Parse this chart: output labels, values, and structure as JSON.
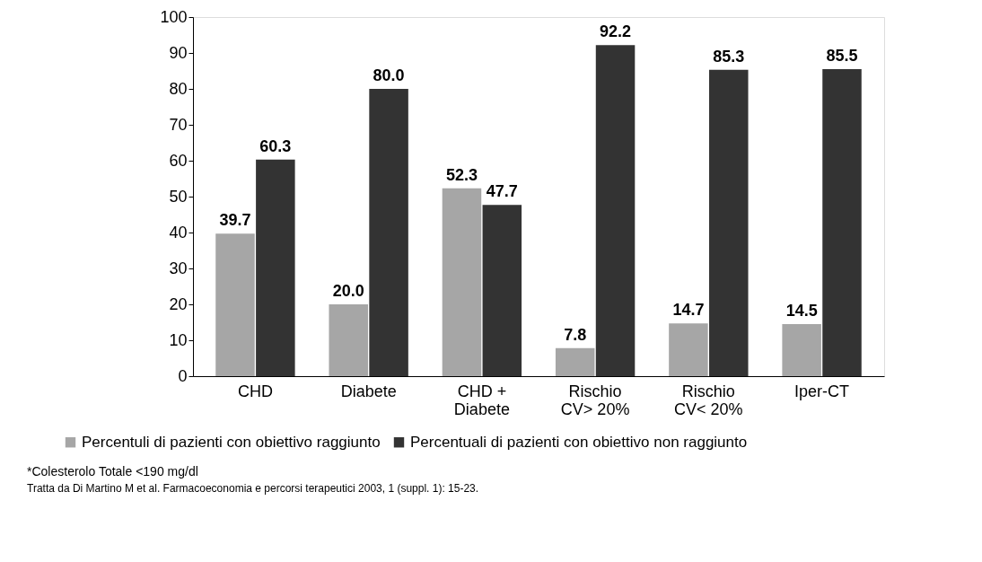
{
  "chart_data": {
    "type": "bar",
    "categories": [
      "CHD",
      "Diabete",
      "CHD +\nDiabete",
      "Rischio\nCV> 20%",
      "Rischio\nCV< 20%",
      "Iper-CT"
    ],
    "series": [
      {
        "name": "Percentuli di pazienti con obiettivo raggiunto",
        "color": "#a6a6a6",
        "values": [
          39.7,
          20.0,
          52.3,
          7.8,
          14.7,
          14.5
        ],
        "value_labels": [
          "39.7",
          "20.0",
          "52.3",
          "7.8",
          "14.7",
          "14.5"
        ]
      },
      {
        "name": "Percentuali di pazienti con obiettivo non raggiunto",
        "color": "#333333",
        "values": [
          60.3,
          80.0,
          47.7,
          92.2,
          85.3,
          85.5
        ],
        "value_labels": [
          "60.3",
          "80.0",
          "47.7",
          "92.2",
          "85.3",
          "85.5"
        ]
      }
    ],
    "ylim": [
      0,
      100
    ],
    "yticks": [
      0,
      10,
      20,
      30,
      40,
      50,
      60,
      70,
      80,
      90,
      100
    ],
    "grid": false,
    "legend": "bottom",
    "annotations": [
      "*Colesterolo Totale <190 mg/dl",
      "Tratta da Di Martino  M et al. Farmacoeconomia e percorsi terapeutici 2003, 1 (suppl. 1): 15-23."
    ]
  }
}
